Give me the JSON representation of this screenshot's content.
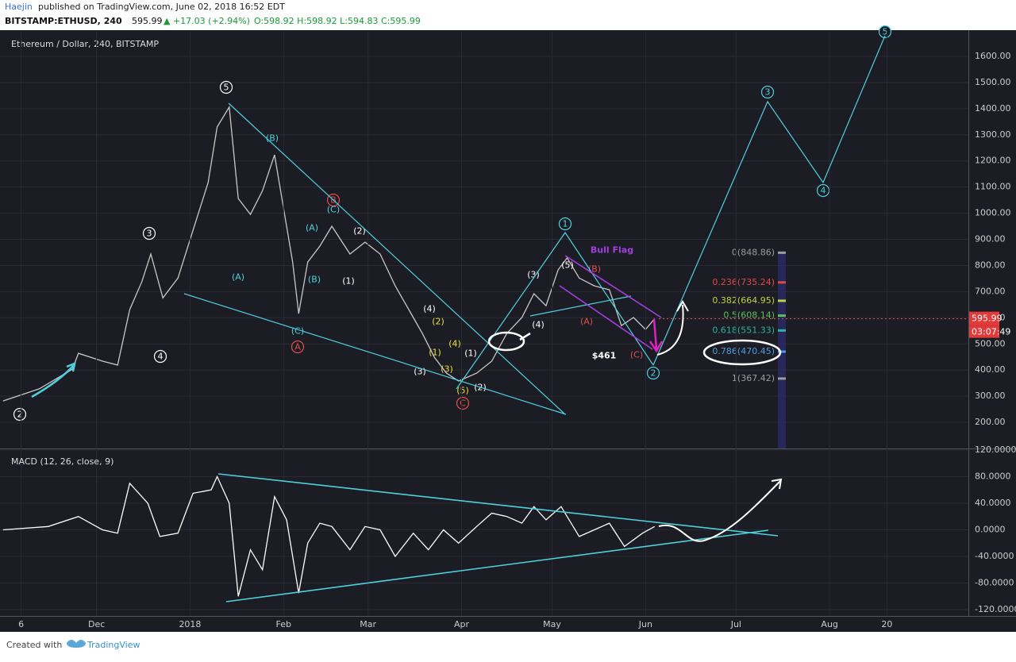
{
  "header": {
    "author": "Haejin",
    "published": "published on TradingView.com, June 02, 2018 16:52 EDT",
    "symbol": "BITSTAMP:ETHUSD, 240",
    "last": "595.99",
    "change": "▲ +17.03 (+2.94%)",
    "ohlc": "O:598.92 H:598.92 L:594.83 C:595.99"
  },
  "footer": {
    "created": "Created with",
    "brand": "TradingView"
  },
  "chart_data": [
    {
      "type": "line",
      "title": "Ethereum / Dollar, 240, BITSTAMP",
      "color": "#c8c8c8",
      "x": [
        -62,
        -50,
        -39,
        -37,
        -29,
        -24,
        -20,
        -16,
        -13,
        -9,
        -4,
        1,
        6,
        9,
        13,
        16,
        20,
        24,
        28,
        30,
        34,
        36,
        39,
        43,
        47,
        53,
        58,
        63,
        68,
        74,
        77,
        81,
        85,
        89,
        95,
        100,
        105,
        110,
        114,
        118,
        122,
        125,
        129,
        134,
        139,
        143,
        147,
        151,
        154
      ],
      "values": [
        282,
        328,
        403,
        464,
        434,
        419,
        631,
        737,
        844,
        676,
        752,
        935,
        1117,
        1330,
        1406,
        1056,
        995,
        1086,
        1223,
        1086,
        813,
        616,
        813,
        874,
        950,
        844,
        889,
        844,
        722,
        601,
        540,
        449,
        388,
        358,
        388,
        434,
        540,
        601,
        692,
        646,
        783,
        829,
        752,
        722,
        707,
        570,
        601,
        555,
        596
      ],
      "xlim": [
        -63,
        258
      ],
      "ylim": [
        100,
        1694
      ],
      "yticks": [
        {
          "value": 200,
          "label": "200.00"
        },
        {
          "value": 300,
          "label": "300.00"
        },
        {
          "value": 400,
          "label": "400.00"
        },
        {
          "value": 500,
          "label": "500.00"
        },
        {
          "value": 600,
          "label": "600.00"
        },
        {
          "value": 700,
          "label": "700.00"
        },
        {
          "value": 800,
          "label": "800.00"
        },
        {
          "value": 900,
          "label": "900.00"
        },
        {
          "value": 1000,
          "label": "1000.00"
        },
        {
          "value": 1100,
          "label": "1100.00"
        },
        {
          "value": 1200,
          "label": "1200.00"
        },
        {
          "value": 1300,
          "label": "1300.00"
        },
        {
          "value": 1400,
          "label": "1400.00"
        },
        {
          "value": 1500,
          "label": "1500.00"
        },
        {
          "value": 1600,
          "label": "1600.00"
        }
      ],
      "grid": true,
      "last_price": {
        "value": 595.99,
        "label": "595.99"
      },
      "countdown": "03:07:49",
      "fib_levels": [
        {
          "value": 848.86,
          "label": "0(848.86)",
          "color": "#9e9e9e"
        },
        {
          "value": 735.24,
          "label": "0.236(735.24)",
          "color": "#e04848"
        },
        {
          "value": 664.95,
          "label": "0.382(664.95)",
          "color": "#c0d040"
        },
        {
          "value": 608.14,
          "label": "0.5(608.14)",
          "color": "#5cc05c"
        },
        {
          "value": 551.33,
          "label": "0.618(551.33)",
          "color": "#2db3a0"
        },
        {
          "value": 470.45,
          "label": "0.786(470.45)",
          "color": "#4a9ee0"
        },
        {
          "value": 367.42,
          "label": "1(367.42)",
          "color": "#9e9e9e"
        }
      ],
      "annotations": [
        "2",
        "3",
        "4",
        "5",
        "1",
        "2",
        "3",
        "4",
        "5",
        "A",
        "B",
        "C",
        "(A)",
        "(B)",
        "(C)",
        "(A)",
        "(B)",
        "(C)",
        "(2)",
        "(1)",
        "(4)",
        "(3)",
        "(1)",
        "(2)",
        "(3)",
        "(4)",
        "(5)",
        "(2)",
        "(1)",
        "(4)",
        "(3)",
        "(5)",
        "(B)",
        "(A)",
        "(C)",
        "Bull Flag",
        "$461"
      ]
    },
    {
      "type": "line",
      "title": "MACD (12, 26, close, 9)",
      "color": "#ffffff",
      "x": [
        -62,
        -47,
        -37,
        -29,
        -24,
        -20,
        -14,
        -10,
        -4,
        1,
        7,
        9,
        13,
        16,
        20,
        24,
        28,
        32,
        36,
        39,
        43,
        47,
        53,
        58,
        63,
        68,
        74,
        79,
        84,
        89,
        95,
        100,
        105,
        110,
        114,
        118,
        123,
        129,
        134,
        139,
        144,
        150,
        154
      ],
      "values": [
        0,
        5,
        20,
        0,
        -5,
        70,
        40,
        -10,
        -5,
        55,
        60,
        80,
        40,
        -100,
        -30,
        -60,
        50,
        15,
        -95,
        -20,
        10,
        5,
        -30,
        5,
        0,
        -40,
        -5,
        -30,
        0,
        -20,
        5,
        25,
        20,
        10,
        35,
        15,
        35,
        -10,
        0,
        10,
        -25,
        -5,
        5
      ],
      "xlim": [
        -63,
        258
      ],
      "ylim": [
        -129.5,
        121.1
      ],
      "yticks": [
        {
          "value": 120,
          "label": "120.0000"
        },
        {
          "value": 80,
          "label": "80.0000"
        },
        {
          "value": 40,
          "label": "40.0000"
        },
        {
          "value": 0,
          "label": "0.0000"
        },
        {
          "value": -40,
          "label": "-40.0000"
        },
        {
          "value": -80,
          "label": "-80.0000"
        },
        {
          "value": -120,
          "label": "-120.0000"
        }
      ],
      "xticks": [
        {
          "value": -56,
          "label": "6"
        },
        {
          "value": -31,
          "label": "Dec"
        },
        {
          "value": 0,
          "label": "2018"
        },
        {
          "value": 31,
          "label": "Feb"
        },
        {
          "value": 59,
          "label": "Mar"
        },
        {
          "value": 90,
          "label": "Apr"
        },
        {
          "value": 120,
          "label": "May"
        },
        {
          "value": 151,
          "label": "Jun"
        },
        {
          "value": 181,
          "label": "Jul"
        },
        {
          "value": 212,
          "label": "Aug"
        },
        {
          "value": 231,
          "label": "20"
        }
      ],
      "grid": true
    }
  ]
}
